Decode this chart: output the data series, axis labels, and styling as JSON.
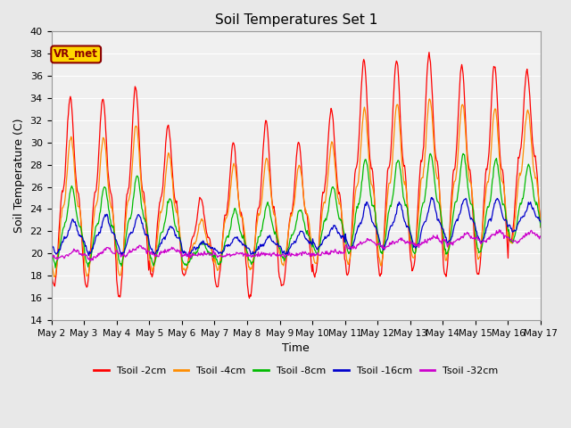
{
  "title": "Soil Temperatures Set 1",
  "xlabel": "Time",
  "ylabel": "Soil Temperature (C)",
  "ylim": [
    14,
    40
  ],
  "yticks": [
    14,
    16,
    18,
    20,
    22,
    24,
    26,
    28,
    30,
    32,
    34,
    36,
    38,
    40
  ],
  "n_days": 15,
  "xtick_labels": [
    "May 2",
    "May 3",
    "May 4",
    "May 5",
    "May 6",
    "May 7",
    "May 8",
    "May 9",
    "May 10",
    "May 11",
    "May 12",
    "May 13",
    "May 14",
    "May 15",
    "May 16",
    "May 17"
  ],
  "annotation_text": "VR_met",
  "annotation_color": "#8B0000",
  "annotation_bg": "#FFD700",
  "series": [
    {
      "label": "Tsoil -2cm",
      "color": "#FF0000",
      "peaks": [
        34,
        17,
        34,
        17,
        35,
        16,
        31.5,
        18,
        25,
        18,
        30,
        17,
        32,
        16,
        30,
        17,
        33,
        18,
        37.5,
        18,
        37.5,
        18,
        38,
        18.5,
        37,
        18,
        37,
        18,
        36.5,
        21
      ],
      "peak_phase": 0.58
    },
    {
      "label": "Tsoil -4cm",
      "color": "#FF8C00",
      "peaks": [
        30.5,
        18,
        30.5,
        18,
        31.5,
        18,
        29,
        18.5,
        23,
        18.5,
        28,
        18.5,
        28.5,
        18.5,
        28,
        19,
        30,
        19,
        33,
        19,
        33.5,
        19,
        34,
        19.5,
        33.5,
        19.5,
        33,
        19.5,
        33,
        21
      ],
      "peak_phase": 0.6
    },
    {
      "label": "Tsoil -8cm",
      "color": "#00BB00",
      "peaks": [
        26,
        19,
        26,
        19,
        27,
        19,
        25,
        19,
        21,
        19,
        24,
        19,
        24.5,
        19,
        24,
        19.5,
        26,
        20,
        28.5,
        20,
        28.5,
        20,
        29,
        20,
        29,
        20,
        28.5,
        20,
        28,
        21
      ],
      "peak_phase": 0.63
    },
    {
      "label": "Tsoil -16cm",
      "color": "#0000CC",
      "peaks": [
        23,
        20,
        23.5,
        20,
        23.5,
        20,
        22.5,
        20,
        21,
        20,
        21.5,
        20,
        21.5,
        20,
        22,
        20,
        22.5,
        20.5,
        24.5,
        20.5,
        24.5,
        20.5,
        25,
        20.5,
        25,
        21,
        25,
        21,
        24.5,
        22
      ],
      "peak_phase": 0.67
    },
    {
      "label": "Tsoil -32cm",
      "color": "#CC00CC",
      "peaks": [
        20.3,
        19.5,
        20.5,
        19.5,
        20.7,
        19.8,
        20.5,
        19.8,
        20,
        19.8,
        20,
        19.8,
        20,
        19.8,
        20,
        19.8,
        20.2,
        19.9,
        21.2,
        20.5,
        21.3,
        20.6,
        21.5,
        20.7,
        21.8,
        20.8,
        22,
        21,
        22,
        21
      ],
      "peak_phase": 0.72
    }
  ],
  "bg_color": "#E8E8E8",
  "plot_bg_color": "#F0F0F0"
}
